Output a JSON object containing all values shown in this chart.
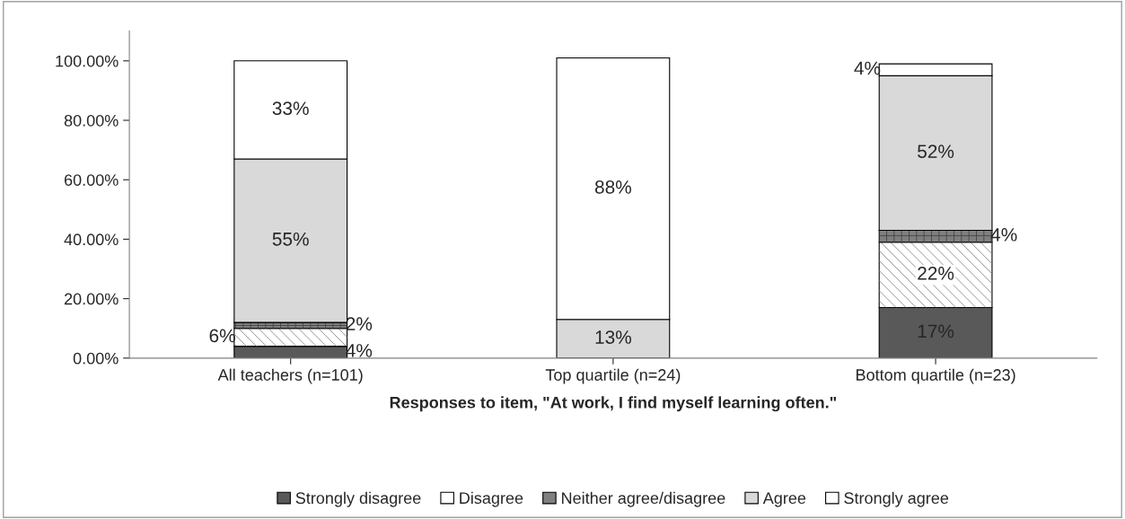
{
  "chart_data": {
    "type": "bar",
    "stacked": true,
    "xlabel": "Responses to item, \"At work, I find myself learning often.\"",
    "categories": [
      "All teachers (n=101)",
      "Top quartile (n=24)",
      "Bottom quartile (n=23)"
    ],
    "series": [
      {
        "name": "Strongly disagree",
        "color": "#595959",
        "values": [
          4,
          0,
          17
        ],
        "value_labels": [
          "4%",
          null,
          "17%"
        ]
      },
      {
        "name": "Disagree",
        "color": "#ffffff",
        "values": [
          6,
          0,
          22
        ],
        "value_labels": [
          "6%",
          null,
          "22%"
        ]
      },
      {
        "name": "Neither agree/disagree",
        "color": "#7f7f7f",
        "values": [
          2,
          0,
          4
        ],
        "value_labels": [
          "2%",
          null,
          "4%"
        ]
      },
      {
        "name": "Agree",
        "color": "#d9d9d9",
        "values": [
          55,
          13,
          52
        ],
        "value_labels": [
          "55%",
          "13%",
          "52%"
        ]
      },
      {
        "name": "Strongly agree",
        "color": "#ffffff",
        "values": [
          33,
          88,
          4
        ],
        "value_labels": [
          "33%",
          "88%",
          "4%"
        ]
      }
    ],
    "ylim": [
      0,
      110
    ],
    "yticks": [
      {
        "value": 0,
        "label": "0.00%"
      },
      {
        "value": 20,
        "label": "20.00%"
      },
      {
        "value": 40,
        "label": "40.00%"
      },
      {
        "value": 60,
        "label": "60.00%"
      },
      {
        "value": 80,
        "label": "80.00%"
      },
      {
        "value": 100,
        "label": "100.00%"
      }
    ],
    "legend": "bottom",
    "grid": false
  }
}
